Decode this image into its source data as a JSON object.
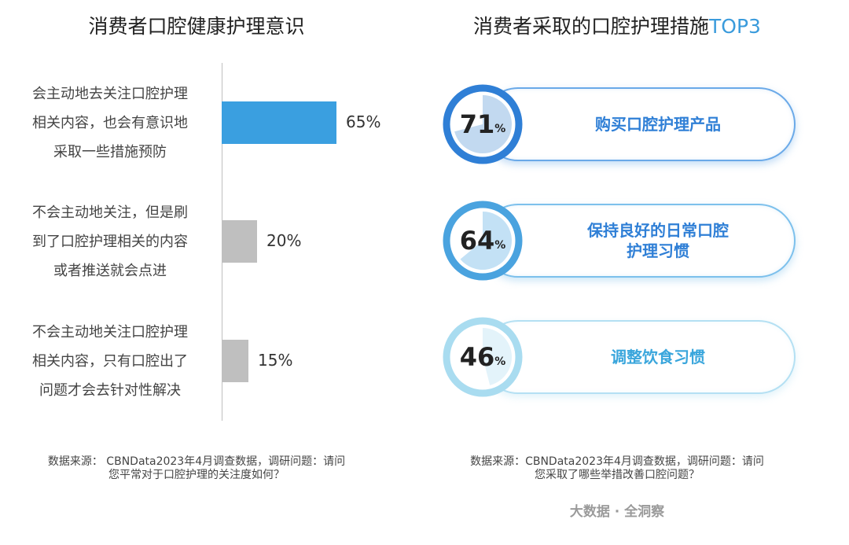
{
  "left_title": "消费者口腔健康护理意识",
  "right_title_main": "消费者采取的口腔护理措施",
  "right_title_accent": "TOP3",
  "left_source_line1": "数据来源： CBNData2023年4月调查数据，调研问题：请问",
  "left_source_line2": "您平常对于口腔护理的关注度如何？",
  "right_source_line1": "数据来源：CBNData2023年4月调查数据，调研问题：请问",
  "right_source_line2": "您采取了哪些举措改善口腔问题？",
  "footer": "大数据 · 全洞察",
  "chart_data": [
    {
      "type": "bar",
      "orientation": "horizontal",
      "title": "消费者口腔健康护理意识",
      "categories": [
        [
          "会主动地去关注口腔护理",
          "相关内容，也会有意识地",
          "采取一些措施预防"
        ],
        [
          "不会主动地关注，但是刷",
          "到了口腔护理相关的内容",
          "或者推送就会点进"
        ],
        [
          "不会主动地关注口腔护理",
          "相关内容，只有口腔出了",
          "问题才会去针对性解决"
        ]
      ],
      "values": [
        65,
        20,
        15
      ],
      "value_labels": [
        "65%",
        "20%",
        "15%"
      ],
      "colors": [
        "#3a9fe0",
        "#bfbfbf",
        "#bfbfbf"
      ],
      "xlim": [
        0,
        100
      ],
      "grid": false
    },
    {
      "type": "pie",
      "title": "消费者采取的口腔护理措施TOP3",
      "items": [
        {
          "label_lines": [
            "购买口腔护理产品"
          ],
          "value": 71,
          "value_text": "71",
          "unit": "%",
          "ring_color": "#2f7fd6",
          "fill_color": "#c2d9f0",
          "glow_color": "#6aa9e8",
          "text_color": "#2f7fd6"
        },
        {
          "label_lines": [
            "保持良好的日常口腔",
            "护理习惯"
          ],
          "value": 64,
          "value_text": "64",
          "unit": "%",
          "ring_color": "#4aa3df",
          "fill_color": "#c3e1f5",
          "glow_color": "#7cc0ec",
          "text_color": "#2f7fd6"
        },
        {
          "label_lines": [
            "调整饮食习惯"
          ],
          "value": 46,
          "value_text": "46",
          "unit": "%",
          "ring_color": "#a9dcf0",
          "fill_color": "#e3f3fa",
          "glow_color": "#b4e0f3",
          "text_color": "#3aa6dc"
        }
      ]
    }
  ]
}
